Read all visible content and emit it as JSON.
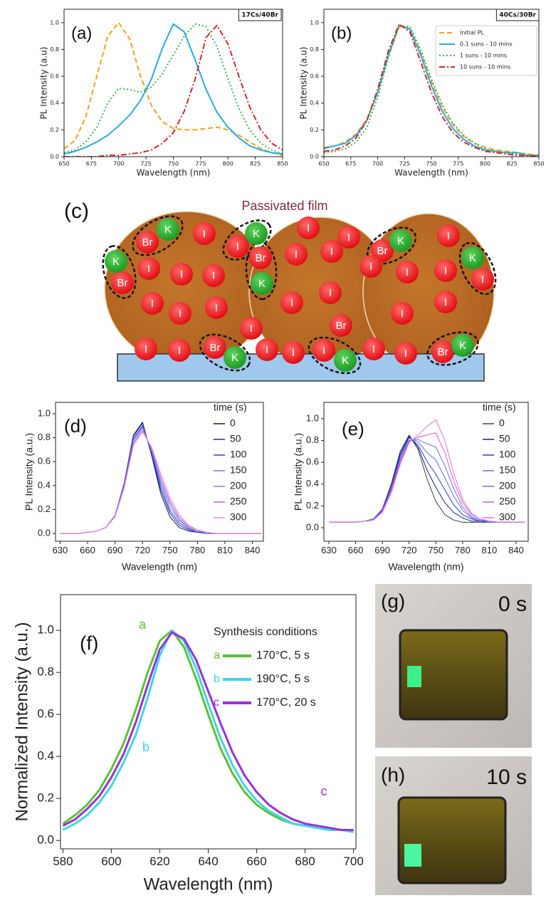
{
  "chart_data": [
    {
      "type": "line",
      "label": "(a)",
      "tag": "17Cs/40Br",
      "x_label": "Wavelength (nm)",
      "y_label": "PL Intensity (a.u)",
      "x": [
        650,
        660,
        670,
        680,
        690,
        700,
        710,
        720,
        730,
        740,
        750,
        760,
        770,
        780,
        790,
        800,
        810,
        820,
        830,
        840,
        850
      ],
      "series": [
        {
          "color": "#f5a01a",
          "style": "dashed",
          "values": [
            0.06,
            0.12,
            0.3,
            0.6,
            0.9,
            1.0,
            0.88,
            0.6,
            0.38,
            0.26,
            0.21,
            0.2,
            0.2,
            0.21,
            0.22,
            0.2,
            0.16,
            0.11,
            0.06,
            0.03,
            0.01
          ]
        },
        {
          "color": "#29abe2",
          "style": "solid",
          "values": [
            0.02,
            0.04,
            0.07,
            0.11,
            0.16,
            0.23,
            0.31,
            0.42,
            0.58,
            0.81,
            0.99,
            0.93,
            0.72,
            0.5,
            0.33,
            0.22,
            0.14,
            0.08,
            0.05,
            0.03,
            0.02
          ]
        },
        {
          "color": "#3cb44b",
          "style": "dotted",
          "values": [
            0.03,
            0.05,
            0.11,
            0.22,
            0.4,
            0.51,
            0.5,
            0.48,
            0.52,
            0.62,
            0.76,
            0.9,
            0.99,
            0.97,
            0.82,
            0.58,
            0.36,
            0.2,
            0.1,
            0.05,
            0.02
          ]
        },
        {
          "color": "#d62728",
          "style": "dashdot",
          "values": [
            0,
            0,
            0,
            0,
            0.01,
            0.01,
            0.02,
            0.03,
            0.05,
            0.1,
            0.18,
            0.34,
            0.58,
            0.89,
            0.98,
            0.84,
            0.6,
            0.37,
            0.2,
            0.1,
            0.05
          ]
        }
      ],
      "xlim": [
        650,
        850
      ],
      "ylim": [
        0,
        1.1
      ],
      "xticks": [
        650,
        675,
        700,
        725,
        750,
        775,
        800,
        825,
        850
      ],
      "yticks": [
        {
          "value": 0,
          "label": "0.0"
        },
        0.2,
        0.4,
        0.6,
        0.8,
        {
          "value": 1,
          "label": "1.0"
        }
      ]
    },
    {
      "type": "line",
      "label": "(b)",
      "tag": "40Cs/30Br",
      "x_label": "Wavelength (nm)",
      "y_label": "PL Intensity (a.u)",
      "legend": "upper right",
      "x": [
        650,
        660,
        670,
        680,
        690,
        700,
        710,
        720,
        730,
        740,
        750,
        760,
        770,
        780,
        790,
        800,
        810,
        820,
        830,
        840,
        850
      ],
      "series": [
        {
          "name": "Initial PL",
          "color": "#f5a01a",
          "style": "dashed",
          "values": [
            0.07,
            0.08,
            0.11,
            0.17,
            0.28,
            0.48,
            0.75,
            0.97,
            0.96,
            0.78,
            0.56,
            0.37,
            0.24,
            0.15,
            0.1,
            0.07,
            0.05,
            0.04,
            0.03,
            0.02,
            0.01
          ]
        },
        {
          "name": "0.1 suns - 10 mins",
          "color": "#29abe2",
          "style": "solid",
          "values": [
            0.06,
            0.08,
            0.1,
            0.16,
            0.27,
            0.48,
            0.76,
            0.98,
            0.95,
            0.76,
            0.53,
            0.34,
            0.21,
            0.13,
            0.08,
            0.05,
            0.04,
            0.03,
            0.03,
            0.01,
            0.01
          ]
        },
        {
          "name": "1 suns - 10 mins",
          "color": "#3cb44b",
          "style": "dotted",
          "values": [
            0.03,
            0.04,
            0.06,
            0.11,
            0.22,
            0.44,
            0.74,
            0.98,
            0.97,
            0.8,
            0.58,
            0.39,
            0.25,
            0.16,
            0.1,
            0.06,
            0.04,
            0.03,
            0.02,
            0.01,
            0.01
          ]
        },
        {
          "name": "10 suns - 10 mins",
          "color": "#d62728",
          "style": "dashdot",
          "values": [
            0.04,
            0.05,
            0.08,
            0.14,
            0.27,
            0.5,
            0.79,
            0.99,
            0.93,
            0.71,
            0.48,
            0.3,
            0.18,
            0.11,
            0.07,
            0.04,
            0.03,
            0.02,
            0.01,
            0.01,
            0
          ]
        }
      ],
      "xlim": [
        650,
        850
      ],
      "ylim": [
        0,
        1.1
      ],
      "xticks": [
        650,
        675,
        700,
        725,
        750,
        775,
        800,
        825,
        850
      ],
      "yticks": [
        {
          "value": 0,
          "label": "0.0"
        },
        0.2,
        0.4,
        0.6,
        0.8,
        {
          "value": 1,
          "label": "1.0"
        }
      ]
    },
    {
      "type": "line",
      "label": "(d)",
      "x_label": "Wavelength (nm)",
      "y_label": "PL Intensity (a.u.)",
      "legend_title": "time (s)",
      "legend": "right",
      "x": [
        630,
        640,
        650,
        660,
        670,
        680,
        690,
        700,
        710,
        720,
        730,
        740,
        750,
        760,
        770,
        780,
        790,
        800,
        810,
        820,
        830,
        840,
        850
      ],
      "series": [
        {
          "name": "0",
          "color": "#0d1550",
          "values": [
            0,
            0,
            0,
            0.01,
            0.02,
            0.05,
            0.15,
            0.42,
            0.82,
            0.93,
            0.65,
            0.33,
            0.14,
            0.05,
            0.02,
            0.01,
            0,
            0,
            0,
            0,
            0,
            0,
            0
          ]
        },
        {
          "name": "50",
          "color": "#1f2aa0",
          "values": [
            0,
            0,
            0,
            0.01,
            0.02,
            0.05,
            0.15,
            0.41,
            0.81,
            0.92,
            0.66,
            0.36,
            0.17,
            0.07,
            0.03,
            0.01,
            0,
            0,
            0,
            0,
            0,
            0,
            0
          ]
        },
        {
          "name": "100",
          "color": "#2d40d8",
          "values": [
            0,
            0,
            0,
            0.01,
            0.02,
            0.05,
            0.15,
            0.41,
            0.79,
            0.9,
            0.67,
            0.39,
            0.19,
            0.09,
            0.04,
            0.02,
            0,
            0,
            0,
            0,
            0,
            0,
            0
          ]
        },
        {
          "name": "150",
          "color": "#6a7ae8",
          "values": [
            0,
            0,
            0,
            0.01,
            0.02,
            0.05,
            0.15,
            0.4,
            0.78,
            0.89,
            0.69,
            0.42,
            0.22,
            0.11,
            0.05,
            0.02,
            0,
            0,
            0,
            0,
            0,
            0,
            0
          ]
        },
        {
          "name": "200",
          "color": "#8f7ad8",
          "values": [
            0,
            0,
            0,
            0.01,
            0.02,
            0.05,
            0.14,
            0.39,
            0.76,
            0.88,
            0.7,
            0.44,
            0.25,
            0.12,
            0.05,
            0.02,
            0.01,
            0,
            0,
            0,
            0,
            0,
            0
          ]
        },
        {
          "name": "250",
          "color": "#c060d0",
          "values": [
            0,
            0,
            0,
            0.01,
            0.02,
            0.05,
            0.14,
            0.39,
            0.75,
            0.86,
            0.71,
            0.47,
            0.27,
            0.14,
            0.06,
            0.03,
            0.01,
            0,
            0,
            0,
            0,
            0,
            0
          ]
        },
        {
          "name": "300",
          "color": "#e88ad8",
          "values": [
            0,
            0,
            0,
            0.01,
            0.02,
            0.05,
            0.14,
            0.38,
            0.73,
            0.85,
            0.72,
            0.5,
            0.3,
            0.16,
            0.07,
            0.03,
            0.01,
            0,
            0,
            0,
            0,
            0,
            0
          ]
        }
      ],
      "xlim": [
        625,
        852
      ],
      "ylim": [
        -0.065,
        1.095
      ],
      "xticks": [
        630,
        660,
        690,
        720,
        750,
        780,
        810,
        840
      ],
      "yticks": [
        {
          "value": 0,
          "label": "0.0"
        },
        0.2,
        0.4,
        0.6,
        0.8,
        {
          "value": 1,
          "label": "1.0"
        }
      ]
    },
    {
      "type": "line",
      "label": "(e)",
      "x_label": "Wavelength (nm)",
      "y_label": "PL Intensity (a.u.)",
      "legend_title": "time (s)",
      "legend": "right",
      "x": [
        630,
        640,
        650,
        660,
        670,
        680,
        690,
        700,
        710,
        720,
        730,
        740,
        750,
        760,
        770,
        780,
        790,
        800,
        810,
        820,
        830,
        840,
        850
      ],
      "series": [
        {
          "name": "0",
          "color": "#2f4a3a",
          "values": [
            0.05,
            0.05,
            0.05,
            0.05,
            0.06,
            0.08,
            0.17,
            0.4,
            0.7,
            0.85,
            0.72,
            0.45,
            0.24,
            0.12,
            0.07,
            0.05,
            0.05,
            0.05,
            0.05,
            0.05,
            0.05,
            0.05,
            0.05
          ]
        },
        {
          "name": "50",
          "color": "#1c1c8c",
          "values": [
            0.05,
            0.05,
            0.05,
            0.05,
            0.06,
            0.08,
            0.17,
            0.39,
            0.68,
            0.84,
            0.74,
            0.53,
            0.37,
            0.23,
            0.14,
            0.09,
            0.06,
            0.06,
            0.05,
            0.05,
            0.05,
            0.05,
            0.05
          ]
        },
        {
          "name": "100",
          "color": "#2b3bd6",
          "values": [
            0.05,
            0.05,
            0.05,
            0.05,
            0.06,
            0.08,
            0.16,
            0.37,
            0.66,
            0.83,
            0.76,
            0.61,
            0.49,
            0.35,
            0.21,
            0.12,
            0.08,
            0.06,
            0.05,
            0.05,
            0.05,
            0.05,
            0.05
          ]
        },
        {
          "name": "150",
          "color": "#5a6ee6",
          "values": [
            0.05,
            0.05,
            0.05,
            0.05,
            0.06,
            0.08,
            0.16,
            0.36,
            0.64,
            0.82,
            0.79,
            0.69,
            0.62,
            0.46,
            0.29,
            0.16,
            0.09,
            0.07,
            0.05,
            0.05,
            0.05,
            0.05,
            0.05
          ]
        },
        {
          "name": "200",
          "color": "#7b68d8",
          "values": [
            0.05,
            0.05,
            0.05,
            0.05,
            0.06,
            0.07,
            0.15,
            0.35,
            0.62,
            0.8,
            0.81,
            0.77,
            0.74,
            0.57,
            0.36,
            0.19,
            0.1,
            0.07,
            0.06,
            0.05,
            0.05,
            0.05,
            0.05
          ]
        },
        {
          "name": "250",
          "color": "#d05ad0",
          "values": [
            0.05,
            0.05,
            0.05,
            0.05,
            0.06,
            0.07,
            0.15,
            0.33,
            0.6,
            0.79,
            0.83,
            0.85,
            0.87,
            0.69,
            0.43,
            0.23,
            0.12,
            0.08,
            0.06,
            0.05,
            0.05,
            0.05,
            0.05
          ]
        },
        {
          "name": "300",
          "color": "#e070d8",
          "values": [
            0.05,
            0.05,
            0.05,
            0.05,
            0.06,
            0.07,
            0.14,
            0.32,
            0.58,
            0.78,
            0.85,
            0.93,
            0.99,
            0.8,
            0.5,
            0.26,
            0.13,
            0.08,
            0.06,
            0.05,
            0.05,
            0.05,
            0.05
          ]
        }
      ],
      "xlim": [
        624.4,
        853.6
      ],
      "ylim": [
        -0.124,
        1.15
      ],
      "xticks": [
        630,
        660,
        690,
        720,
        750,
        780,
        810,
        840
      ],
      "yticks": [
        {
          "value": 0,
          "label": "0.0"
        },
        0.2,
        0.4,
        0.6,
        0.8,
        {
          "value": 1,
          "label": "1.0"
        }
      ]
    },
    {
      "type": "line",
      "label": "(f)",
      "x_label": "Wavelength (nm)",
      "y_label": "Normalized Intensity (a.u.)",
      "legend_title": "Synthesis conditions",
      "legend": "upper right",
      "x": [
        580,
        585,
        590,
        595,
        600,
        605,
        610,
        615,
        620,
        625,
        630,
        635,
        640,
        645,
        650,
        655,
        660,
        665,
        670,
        675,
        680,
        685,
        690,
        695,
        700
      ],
      "series": [
        {
          "tag": "a",
          "name": "170°C, 5 s",
          "color": "#5bc236",
          "values": [
            0.08,
            0.12,
            0.17,
            0.24,
            0.34,
            0.46,
            0.62,
            0.8,
            0.95,
            1.0,
            0.92,
            0.77,
            0.6,
            0.44,
            0.32,
            0.23,
            0.17,
            0.13,
            0.1,
            0.08,
            0.07,
            0.06,
            0.05,
            0.05,
            0.05
          ]
        },
        {
          "tag": "b",
          "name": "190°C, 5 s",
          "color": "#3fd6e8",
          "values": [
            0.05,
            0.08,
            0.12,
            0.18,
            0.26,
            0.37,
            0.5,
            0.68,
            0.88,
            1.0,
            0.95,
            0.82,
            0.65,
            0.49,
            0.36,
            0.26,
            0.19,
            0.14,
            0.11,
            0.08,
            0.07,
            0.06,
            0.05,
            0.05,
            0.04
          ]
        },
        {
          "tag": "c",
          "name": "170°C, 20 s",
          "color": "#9b30d9",
          "values": [
            0.07,
            0.1,
            0.15,
            0.21,
            0.3,
            0.41,
            0.56,
            0.74,
            0.91,
            0.99,
            0.96,
            0.86,
            0.71,
            0.56,
            0.42,
            0.31,
            0.23,
            0.17,
            0.13,
            0.1,
            0.08,
            0.07,
            0.06,
            0.05,
            0.05
          ]
        }
      ],
      "xlim": [
        579,
        701
      ],
      "ylim": [
        -0.04,
        1.17
      ],
      "xticks": [
        580,
        600,
        620,
        640,
        660,
        680,
        700
      ],
      "yticks": [
        {
          "value": 0,
          "label": "0.0"
        },
        0.2,
        0.4,
        0.6,
        0.8,
        {
          "value": 1,
          "label": "1.0"
        }
      ]
    }
  ],
  "diagram": {
    "label": "(c)",
    "title": "Passivated film",
    "red_ions": [
      "Br",
      "I",
      "I",
      "I",
      "I",
      "I",
      "Br",
      "I",
      "I",
      "I",
      "Br",
      "I",
      "I",
      "I",
      "I",
      "I",
      "I",
      "Br",
      "I",
      "I",
      "I",
      "I",
      "I",
      "I",
      "I",
      "Br",
      "I",
      "I",
      "I",
      "Br",
      "I",
      "I",
      "I",
      "I",
      "I",
      "Br"
    ],
    "green_ions": [
      "K",
      "K",
      "K",
      "K",
      "K",
      "K",
      "K",
      "K",
      "K"
    ]
  },
  "photos": [
    {
      "label": "(g)",
      "time": "0 s"
    },
    {
      "label": "(h)",
      "time": "10 s"
    }
  ]
}
